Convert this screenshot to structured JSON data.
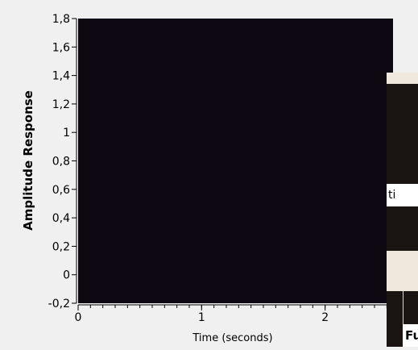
{
  "chart_data": {
    "type": "line",
    "title": "",
    "xlabel": "Time (seconds)",
    "ylabel": "Amplitude Response",
    "xlim": [
      0,
      2.55
    ],
    "ylim": [
      -0.2,
      1.8
    ],
    "x_ticks": [
      {
        "value": 0,
        "label": "0"
      },
      {
        "value": 1,
        "label": "1"
      },
      {
        "value": 2,
        "label": "2"
      }
    ],
    "y_ticks": [
      {
        "value": 1.8,
        "label": "1,8"
      },
      {
        "value": 1.6,
        "label": "1,6"
      },
      {
        "value": 1.4,
        "label": "1,4"
      },
      {
        "value": 1.2,
        "label": "1,2"
      },
      {
        "value": 1.0,
        "label": "1"
      },
      {
        "value": 0.8,
        "label": "0,8"
      },
      {
        "value": 0.6,
        "label": "0,6"
      },
      {
        "value": 0.4,
        "label": "0,4"
      },
      {
        "value": 0.2,
        "label": "0,2"
      },
      {
        "value": 0.0,
        "label": "0"
      },
      {
        "value": -0.2,
        "label": "-0,2"
      }
    ],
    "series": [],
    "grid": false,
    "plot_background": "#0e0812"
  },
  "side_panel": {
    "partial_label_1": "ti",
    "partial_label_2": "Fu"
  }
}
